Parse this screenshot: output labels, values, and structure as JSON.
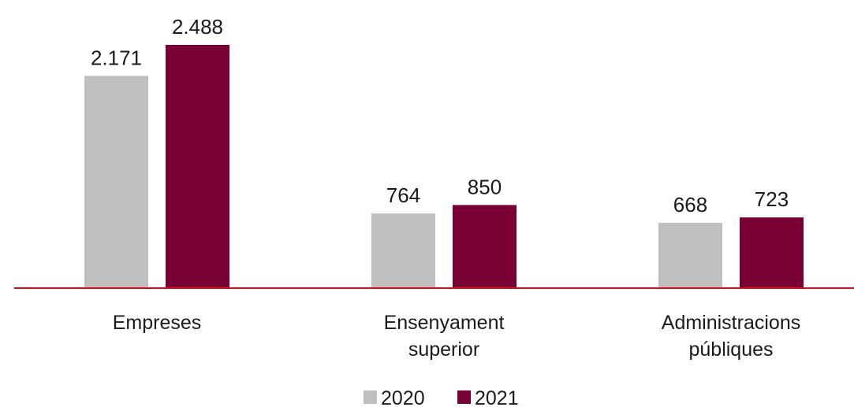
{
  "chart_data": {
    "type": "bar",
    "categories": [
      "Empreses",
      "Ensenyament superior",
      "Administracions públiques"
    ],
    "series": [
      {
        "name": "2020",
        "color": "#bfbfbf",
        "values": [
          2171,
          764,
          668
        ],
        "value_labels": [
          "2.171",
          "764",
          "668"
        ]
      },
      {
        "name": "2021",
        "color": "#780032",
        "values": [
          2488,
          850,
          723
        ],
        "value_labels": [
          "2.488",
          "850",
          "723"
        ]
      }
    ],
    "baseline_color": "#e30613"
  }
}
